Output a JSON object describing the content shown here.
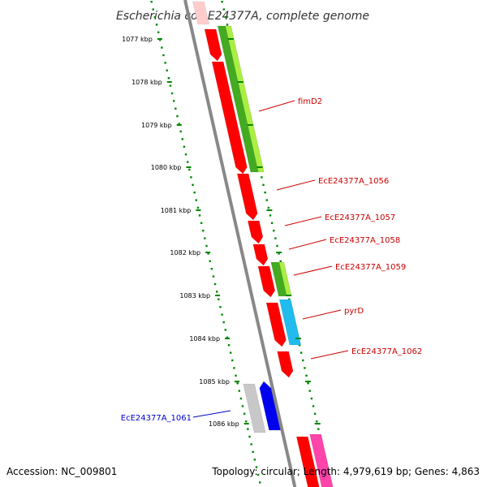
{
  "title": "Escherichia coli E24377A, complete genome",
  "accession": "Accession: NC_009801",
  "summary": "Topology: circular; Length: 4,979,619 bp; Genes: 4,863",
  "ruler_ticks": [
    {
      "label": "1077 kbp",
      "kbp": 1077
    },
    {
      "label": "1078 kbp",
      "kbp": 1078
    },
    {
      "label": "1079 kbp",
      "kbp": 1079
    },
    {
      "label": "1080 kbp",
      "kbp": 1080
    },
    {
      "label": "1081 kbp",
      "kbp": 1081
    },
    {
      "label": "1082 kbp",
      "kbp": 1082
    },
    {
      "label": "1083 kbp",
      "kbp": 1083
    },
    {
      "label": "1084 kbp",
      "kbp": 1084
    },
    {
      "label": "1085 kbp",
      "kbp": 1085
    },
    {
      "label": "1086 kbp",
      "kbp": 1086
    }
  ],
  "gene_labels": [
    {
      "text": "fimD2",
      "color": "#cc0000"
    },
    {
      "text": "EcE24377A_1056",
      "color": "#cc0000"
    },
    {
      "text": "EcE24377A_1057",
      "color": "#cc0000"
    },
    {
      "text": "EcE24377A_1058",
      "color": "#cc0000"
    },
    {
      "text": "EcE24377A_1059",
      "color": "#cc0000"
    },
    {
      "text": "pyrD",
      "color": "#cc0000"
    },
    {
      "text": "EcE24377A_1062",
      "color": "#cc0000"
    },
    {
      "text": "EcE24377A_1061",
      "color": "#0000cc"
    }
  ],
  "colors": {
    "backbone": "#888888",
    "ruler_dots": "#008800",
    "gene_red": "#ff0000",
    "gene_green": "#44aa22",
    "gene_lime": "#aaee44",
    "gene_cyan": "#22bbee",
    "gene_blue": "#0000ee",
    "gene_grey": "#c8c8c8",
    "gene_pink": "#ff44aa",
    "gene_faded": "#ffcccc"
  }
}
